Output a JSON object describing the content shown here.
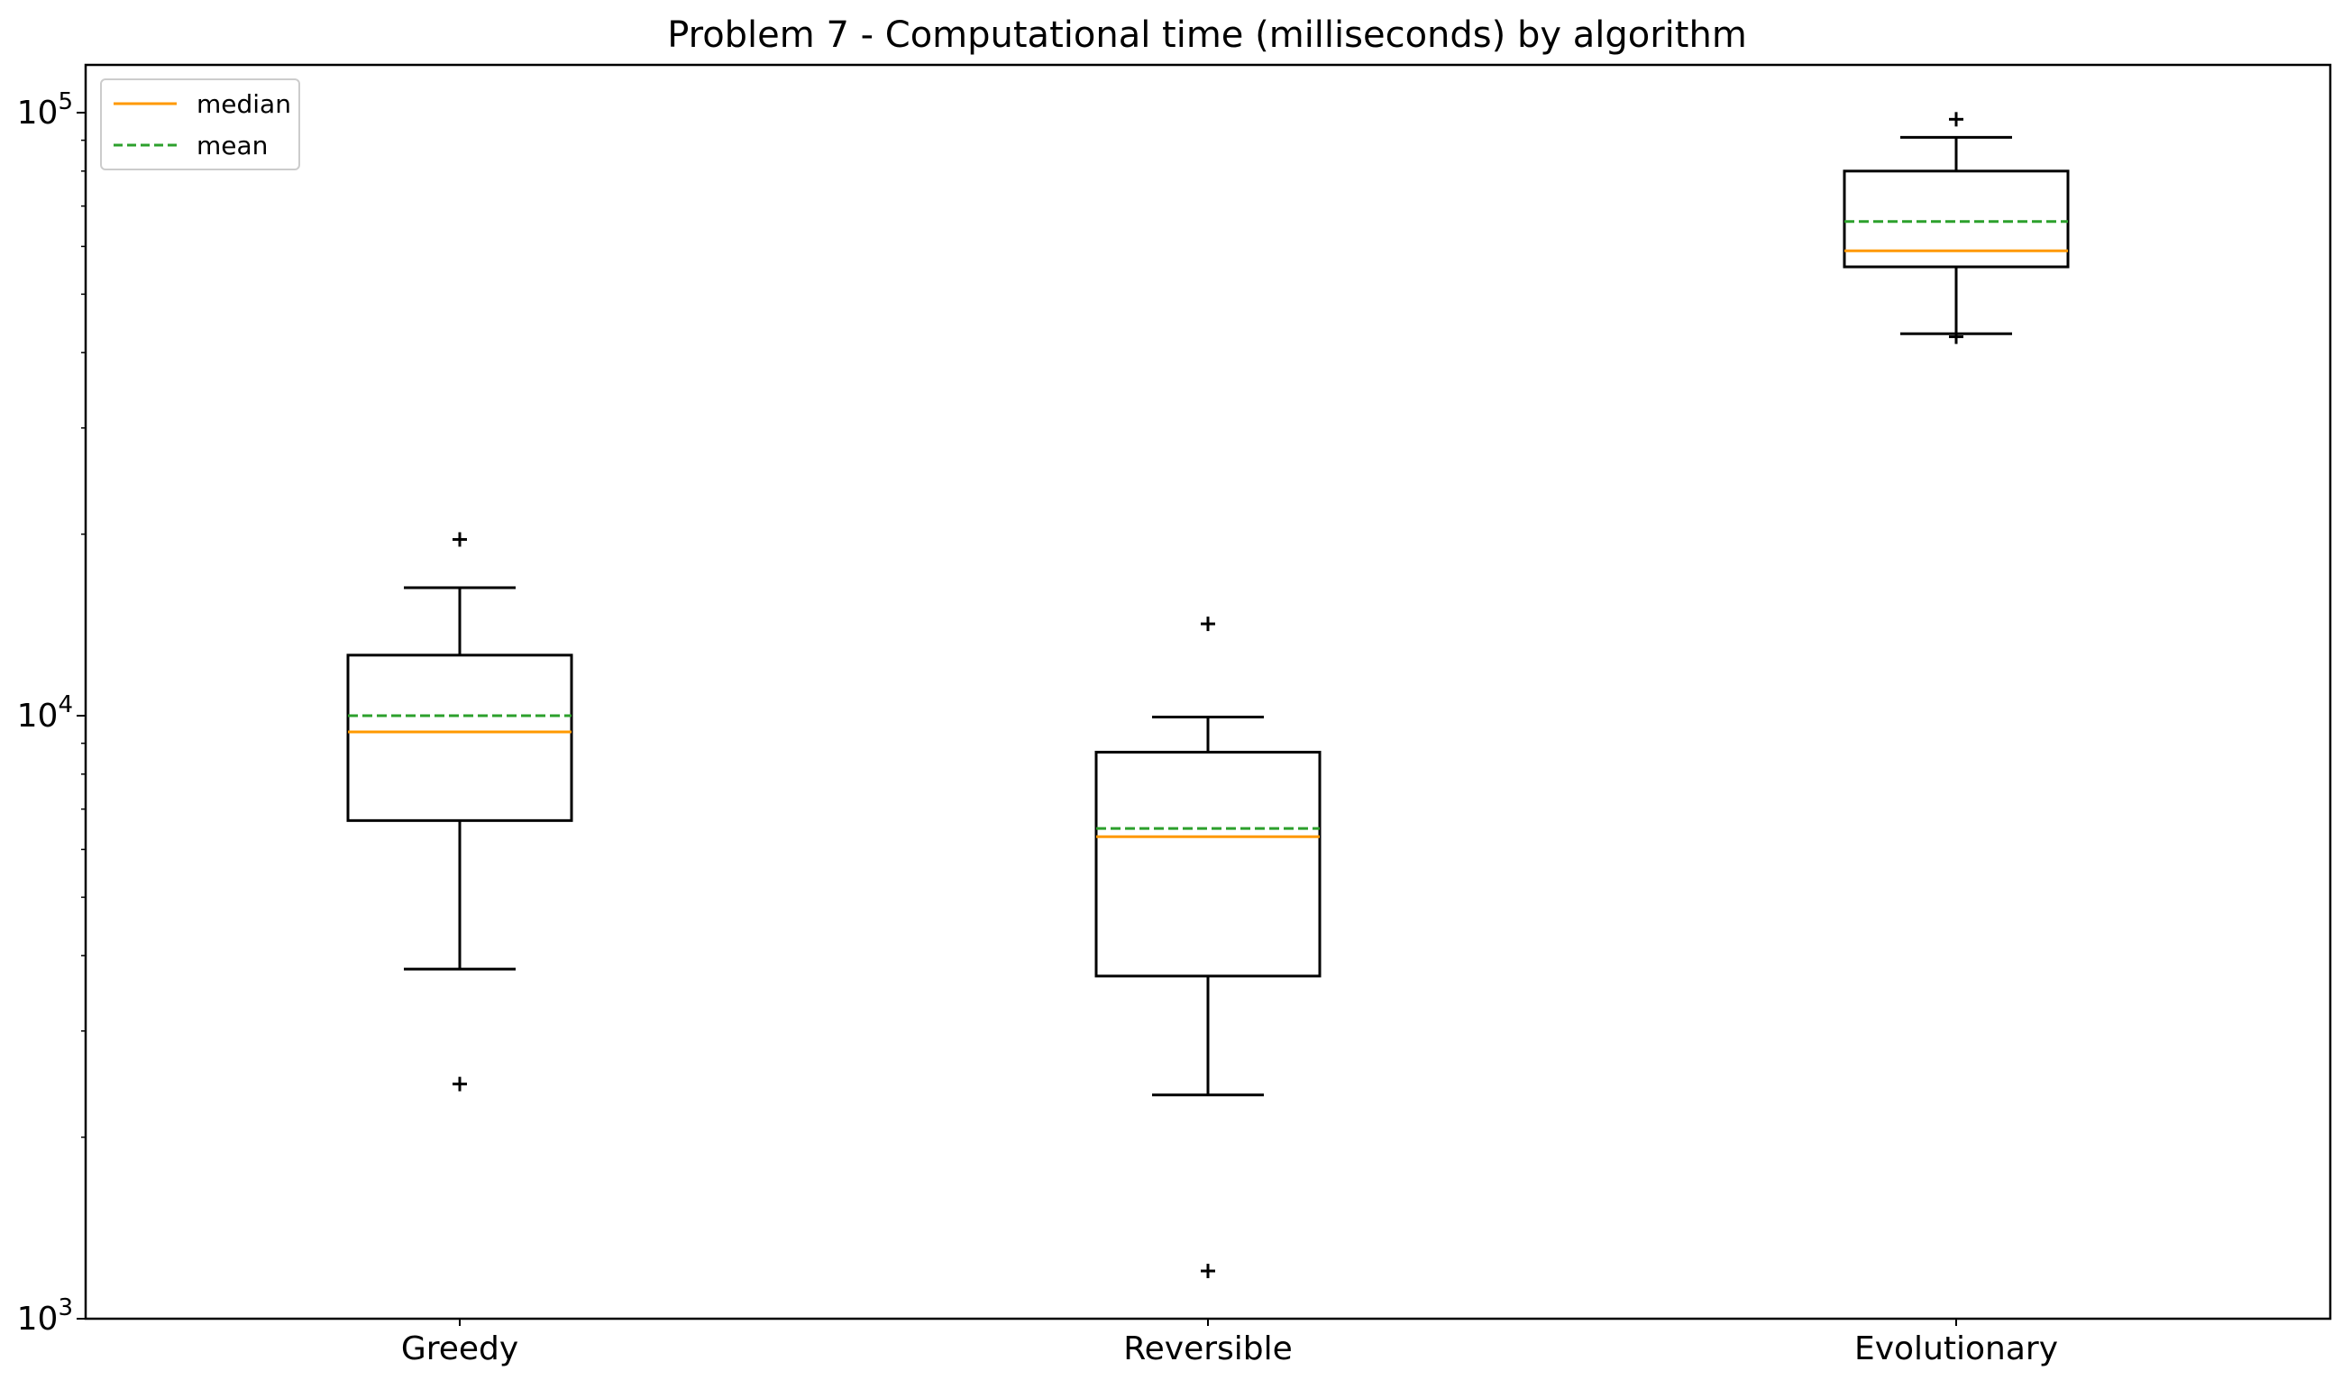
{
  "chart_data": {
    "type": "box",
    "title": "Problem 7 - Computational time (milliseconds) by algorithm",
    "xlabel": "",
    "ylabel": "",
    "y_scale": "log",
    "ylim": [
      1000,
      120000
    ],
    "y_ticks": [
      {
        "value": 1000,
        "base": "10",
        "exp": "3"
      },
      {
        "value": 10000,
        "base": "10",
        "exp": "4"
      },
      {
        "value": 100000,
        "base": "10",
        "exp": "5"
      }
    ],
    "categories": [
      "Greedy",
      "Reversible",
      "Evolutionary"
    ],
    "boxes": [
      {
        "category": "Greedy",
        "whisker_low": 3800,
        "q1": 6700,
        "median": 9400,
        "mean": 10000,
        "q3": 12600,
        "whisker_high": 16300,
        "outliers": [
          2450,
          19600
        ]
      },
      {
        "category": "Reversible",
        "whisker_low": 2350,
        "q1": 3700,
        "median": 6300,
        "mean": 6500,
        "q3": 8700,
        "whisker_high": 9950,
        "outliers": [
          1200,
          14200
        ]
      },
      {
        "category": "Evolutionary",
        "whisker_low": 43000,
        "q1": 55500,
        "median": 59000,
        "mean": 66000,
        "q3": 80000,
        "whisker_high": 91000,
        "outliers": [
          42500,
          97500
        ]
      }
    ],
    "legend": {
      "placement": "top-left",
      "entries": [
        {
          "label": "median",
          "color": "#ff9900",
          "style": "solid"
        },
        {
          "label": "mean",
          "color": "#2ca02c",
          "style": "dashed"
        }
      ]
    },
    "grid": false
  }
}
